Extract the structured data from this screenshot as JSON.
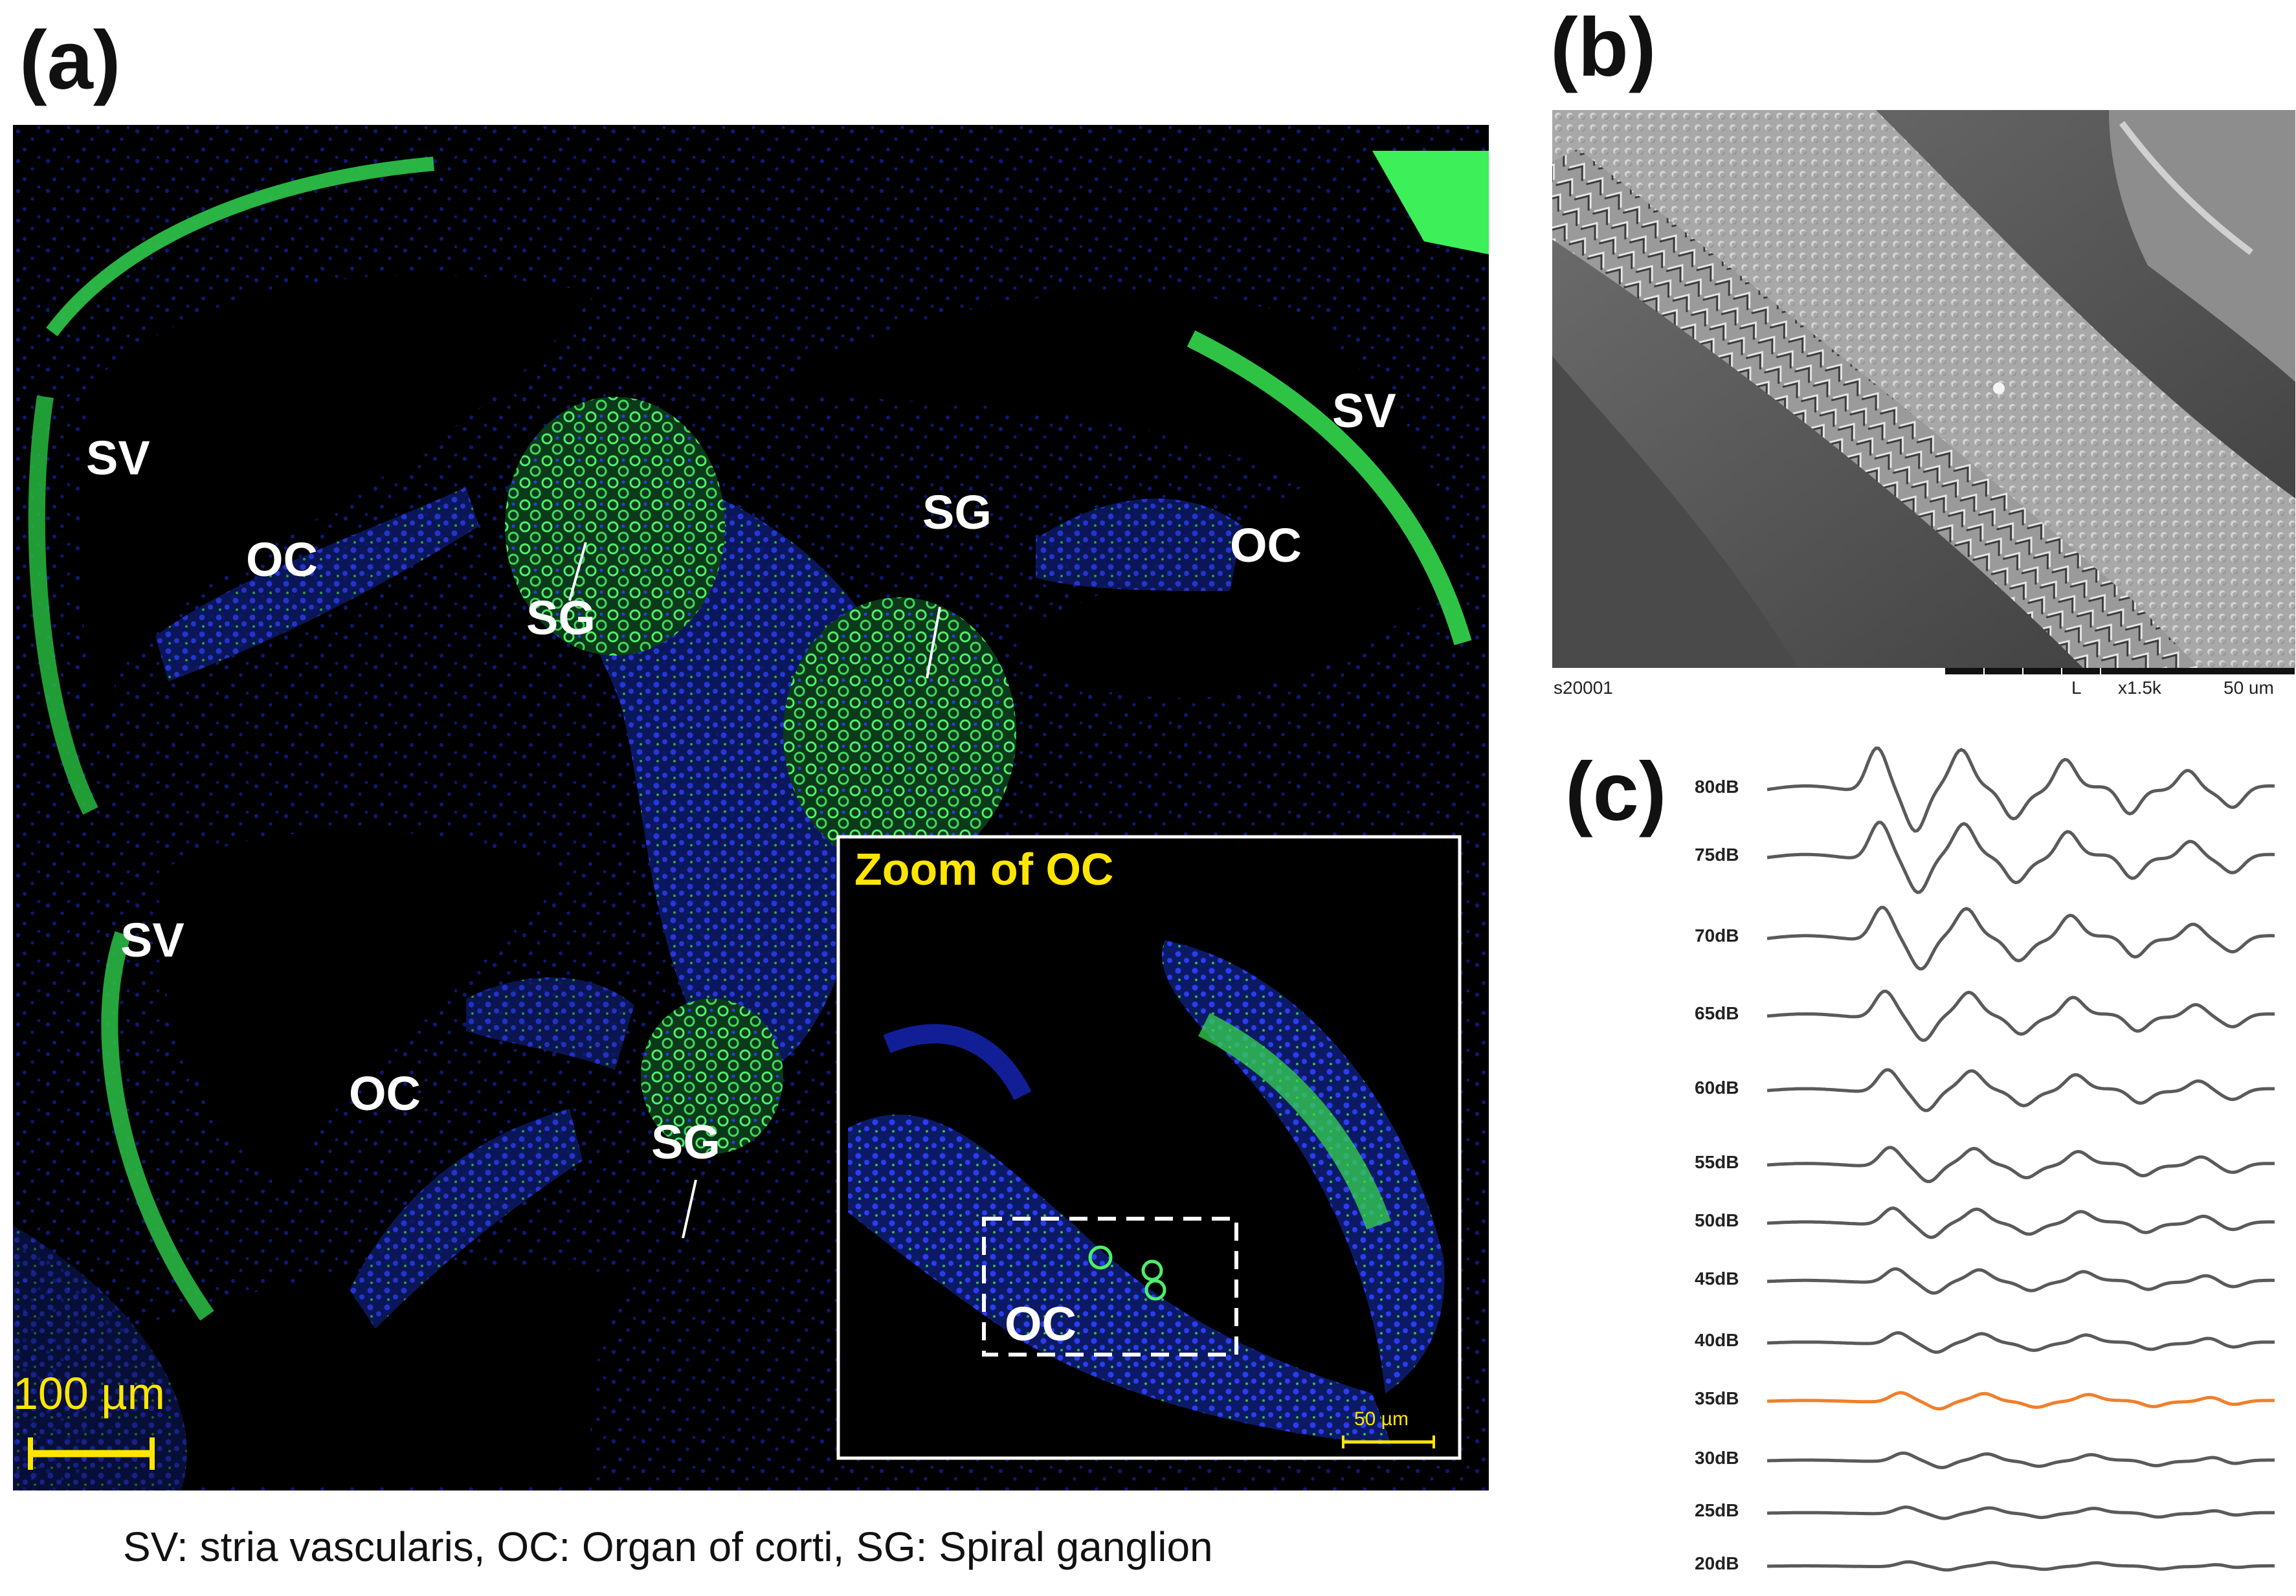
{
  "panels": {
    "a": "(a)",
    "b": "(b)",
    "c": "(c)"
  },
  "panel_a": {
    "tissue_labels": {
      "sv1": "SV",
      "sv2": "SV",
      "sv3": "SV",
      "oc1": "OC",
      "oc2": "OC",
      "oc3": "OC",
      "oc4": "OC",
      "sg1": "SG",
      "sg2": "SG",
      "sg3": "SG"
    },
    "zoom_title": "Zoom of OC",
    "scalebar_main": "100 µm",
    "scalebar_inset": "50 µm",
    "colors": {
      "nuclei": "#1a2bd6",
      "stain": "#38e03a",
      "annotation": "#ffe600"
    }
  },
  "caption": "SV: stria vascularis, OC: Organ of corti, SG: Spiral ganglion",
  "panel_b": {
    "sample_id": "s20001",
    "detector": "L",
    "magnification": "x1.5k",
    "scale": "50 um"
  },
  "panel_c": {
    "levels": [
      "80dB",
      "75dB",
      "70dB",
      "65dB",
      "60dB",
      "55dB",
      "50dB",
      "45dB",
      "40dB",
      "35dB",
      "30dB",
      "25dB",
      "20dB"
    ],
    "threshold_level": "35dB",
    "colors": {
      "trace": "#5a5a5a",
      "threshold": "#f07f2a"
    }
  }
}
